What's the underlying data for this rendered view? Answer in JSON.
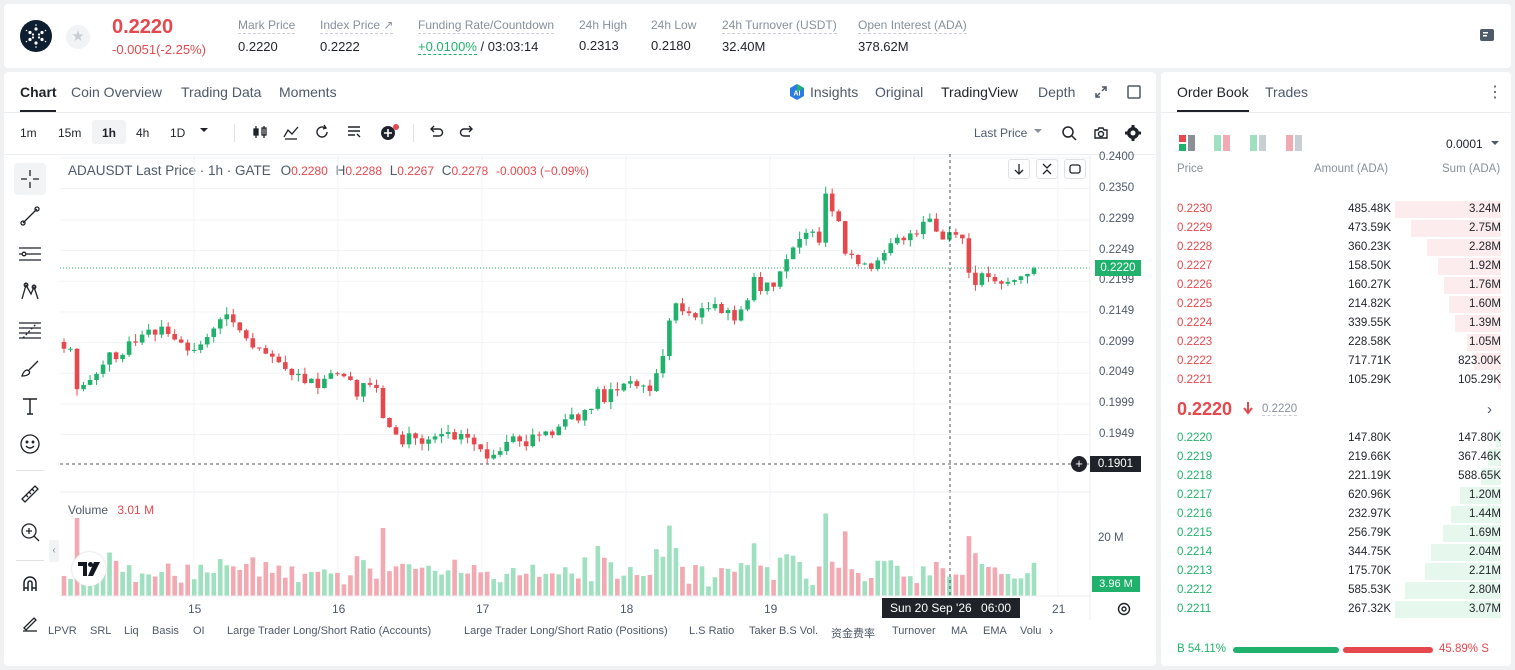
{
  "header": {
    "last_price": "0.2220",
    "change": "-0.0051(-2.25%)",
    "stats": [
      {
        "label": "Mark Price",
        "value": "0.2220"
      },
      {
        "label": "Index Price ↗",
        "value": "0.2222"
      },
      {
        "label": "Funding Rate/Countdown",
        "value_green": "+0.0100%",
        "value": " / 03:03:14"
      },
      {
        "label": "24h High",
        "value": "0.2313"
      },
      {
        "label": "24h Low",
        "value": "0.2180"
      },
      {
        "label": "24h Turnover (USDT)",
        "value": "32.40M"
      },
      {
        "label": "Open Interest (ADA)",
        "value": "378.62M"
      }
    ]
  },
  "chart_tabs": [
    "Chart",
    "Coin Overview",
    "Trading Data",
    "Moments"
  ],
  "view_tabs": [
    "Insights",
    "Original",
    "TradingView",
    "Depth"
  ],
  "timeframes": [
    "1m",
    "15m",
    "1h",
    "4h",
    "1D"
  ],
  "price_type": "Last Price",
  "legend": {
    "symbol": "ADAUSDT Last Price · 1h · GATE",
    "o_label": "O",
    "o": "0.2280",
    "h_label": "H",
    "h": "0.2288",
    "l_label": "L",
    "l": "0.2267",
    "c_label": "C",
    "c": "0.2278",
    "change": "-0.0003 (−0.09%)"
  },
  "volume": {
    "label": "Volume",
    "value": "3.01 M",
    "axis_label": "20 M",
    "last_tag": "3.96 M"
  },
  "crosshair": {
    "date": "Sun 20 Sep '26",
    "time": "06:00",
    "price": "0.1901"
  },
  "last_price_tag": "0.2220",
  "y_ticks": [
    "0.2400",
    "0.2350",
    "0.2299",
    "0.2249",
    "0.2199",
    "0.2149",
    "0.2099",
    "0.2049",
    "0.1999",
    "0.1949"
  ],
  "x_ticks": [
    "15",
    "16",
    "17",
    "18",
    "19",
    "21"
  ],
  "indicators": [
    "LPVR",
    "SRL",
    "Liq",
    "Basis",
    "OI",
    "Large Trader Long/Short Ratio (Accounts)",
    "Large Trader Long/Short Ratio (Positions)",
    "L.S Ratio",
    "Taker B.S Vol.",
    "资金费率",
    "Turnover",
    "MA",
    "EMA",
    "Volu"
  ],
  "orderbook": {
    "tabs": [
      "Order Book",
      "Trades"
    ],
    "precision": "0.0001",
    "columns": [
      "Price",
      "Amount (ADA)",
      "Sum (ADA)"
    ],
    "asks": [
      {
        "price": "0.2230",
        "amount": "485.48K",
        "sum": "3.24M",
        "depth": 1.0
      },
      {
        "price": "0.2229",
        "amount": "473.59K",
        "sum": "2.75M",
        "depth": 0.85
      },
      {
        "price": "0.2228",
        "amount": "360.23K",
        "sum": "2.28M",
        "depth": 0.7
      },
      {
        "price": "0.2227",
        "amount": "158.50K",
        "sum": "1.92M",
        "depth": 0.59
      },
      {
        "price": "0.2226",
        "amount": "160.27K",
        "sum": "1.76M",
        "depth": 0.54
      },
      {
        "price": "0.2225",
        "amount": "214.82K",
        "sum": "1.60M",
        "depth": 0.49
      },
      {
        "price": "0.2224",
        "amount": "339.55K",
        "sum": "1.39M",
        "depth": 0.43
      },
      {
        "price": "0.2223",
        "amount": "228.58K",
        "sum": "1.05M",
        "depth": 0.32
      },
      {
        "price": "0.2222",
        "amount": "717.71K",
        "sum": "823.00K",
        "depth": 0.25
      },
      {
        "price": "0.2221",
        "amount": "105.29K",
        "sum": "105.29K",
        "depth": 0.03
      }
    ],
    "mid_price": "0.2220",
    "mid_mark": "0.2220",
    "bids": [
      {
        "price": "0.2220",
        "amount": "147.80K",
        "sum": "147.80K",
        "depth": 0.05
      },
      {
        "price": "0.2219",
        "amount": "219.66K",
        "sum": "367.46K",
        "depth": 0.12
      },
      {
        "price": "0.2218",
        "amount": "221.19K",
        "sum": "588.65K",
        "depth": 0.19
      },
      {
        "price": "0.2217",
        "amount": "620.96K",
        "sum": "1.20M",
        "depth": 0.39
      },
      {
        "price": "0.2216",
        "amount": "232.97K",
        "sum": "1.44M",
        "depth": 0.47
      },
      {
        "price": "0.2215",
        "amount": "256.79K",
        "sum": "1.69M",
        "depth": 0.55
      },
      {
        "price": "0.2214",
        "amount": "344.75K",
        "sum": "2.04M",
        "depth": 0.66
      },
      {
        "price": "0.2213",
        "amount": "175.70K",
        "sum": "2.21M",
        "depth": 0.72
      },
      {
        "price": "0.2212",
        "amount": "585.53K",
        "sum": "2.80M",
        "depth": 0.91
      },
      {
        "price": "0.2211",
        "amount": "267.32K",
        "sum": "3.07M",
        "depth": 1.0
      }
    ],
    "buy_ratio": "B 54.11%",
    "sell_ratio": "45.89% S",
    "buy_fraction": 0.5411
  },
  "colors": {
    "up": "#20b26c",
    "down": "#e5484d",
    "up_vol": "#9fe0c0",
    "down_vol": "#f2a9b1"
  },
  "chart_data": {
    "type": "candlestick",
    "symbol": "ADAUSDT",
    "interval": "1h",
    "ylim": [
      0.1885,
      0.2405
    ],
    "x_ticks": [
      "15",
      "16",
      "17",
      "18",
      "19",
      "21"
    ],
    "close": [
      0.2089,
      0.2089,
      0.2023,
      0.203,
      0.2038,
      0.2048,
      0.2063,
      0.2083,
      0.2072,
      0.2079,
      0.2101,
      0.2099,
      0.2112,
      0.212,
      0.2112,
      0.2125,
      0.2113,
      0.2104,
      0.2099,
      0.2086,
      0.2087,
      0.2096,
      0.2108,
      0.2122,
      0.2137,
      0.2145,
      0.2132,
      0.2119,
      0.2106,
      0.2091,
      0.209,
      0.2081,
      0.2076,
      0.2067,
      0.2056,
      0.2046,
      0.2048,
      0.2033,
      0.204,
      0.2025,
      0.204,
      0.2049,
      0.2048,
      0.2044,
      0.2038,
      0.2011,
      0.2033,
      0.203,
      0.2025,
      0.1976,
      0.1961,
      0.1949,
      0.1933,
      0.1951,
      0.1943,
      0.1934,
      0.1941,
      0.1946,
      0.195,
      0.1953,
      0.1941,
      0.195,
      0.1944,
      0.1933,
      0.1925,
      0.191,
      0.1916,
      0.1922,
      0.1937,
      0.1946,
      0.1938,
      0.193,
      0.1949,
      0.1948,
      0.1954,
      0.1948,
      0.1962,
      0.1974,
      0.1982,
      0.1972,
      0.1989,
      0.1991,
      0.2023,
      0.2002,
      0.2023,
      0.2021,
      0.2032,
      0.2036,
      0.2028,
      0.2029,
      0.202,
      0.2049,
      0.2077,
      0.2135,
      0.2163,
      0.215,
      0.2147,
      0.214,
      0.2155,
      0.2155,
      0.2162,
      0.2147,
      0.2152,
      0.2135,
      0.2153,
      0.2168,
      0.2206,
      0.2183,
      0.2197,
      0.219,
      0.2215,
      0.2235,
      0.2254,
      0.2268,
      0.2278,
      0.228,
      0.2262,
      0.2342,
      0.2313,
      0.2297,
      0.2244,
      0.2242,
      0.2227,
      0.2228,
      0.2219,
      0.2233,
      0.2245,
      0.2261,
      0.227,
      0.2266,
      0.2277,
      0.2276,
      0.2296,
      0.2301,
      0.228,
      0.2267,
      0.2279,
      0.2275,
      0.2269,
      0.2213,
      0.2193,
      0.2212,
      0.2206,
      0.2199,
      0.2195,
      0.2198,
      0.2201,
      0.2207,
      0.2211,
      0.222
    ],
    "volume_last": "3.96 M",
    "legend": {
      "o": "0.2280",
      "h": "0.2288",
      "l": "0.2267",
      "c": "0.2278",
      "change": "-0.0003 (−0.09%)"
    },
    "last_price": "0.2220",
    "crosshair_price": "0.1901",
    "crosshair_time": "Sun 20 Sep '26 06:00"
  }
}
